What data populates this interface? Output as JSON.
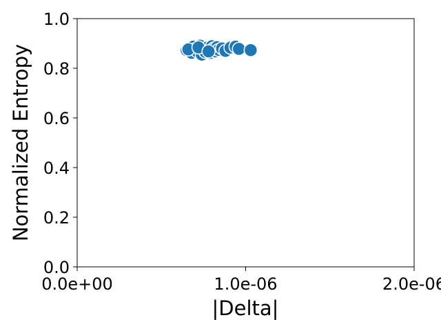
{
  "chart_data": {
    "type": "scatter",
    "title": "",
    "xlabel": "|Delta|",
    "ylabel": "Normalized Entropy",
    "xlim": [
      0,
      2e-06
    ],
    "ylim": [
      0,
      1
    ],
    "x_ticks": [
      0,
      1e-06,
      2e-06
    ],
    "x_tick_labels": [
      "0.0e+00",
      "1.0e-06",
      "2.0e-06"
    ],
    "y_ticks": [
      0,
      0.2,
      0.4,
      0.6,
      0.8,
      1.0
    ],
    "y_tick_labels": [
      "0.0",
      "0.2",
      "0.4",
      "0.6",
      "0.8",
      "1.0"
    ],
    "grid": false,
    "marker_color": "#1f77b4",
    "marker_edge_color": "#ffffff",
    "points": [
      {
        "x": 6.5e-07,
        "y": 0.873
      },
      {
        "x": 6.6e-07,
        "y": 0.88
      },
      {
        "x": 6.8e-07,
        "y": 0.862
      },
      {
        "x": 6.9e-07,
        "y": 0.887
      },
      {
        "x": 7e-07,
        "y": 0.876
      },
      {
        "x": 7.1e-07,
        "y": 0.869
      },
      {
        "x": 7.2e-07,
        "y": 0.884
      },
      {
        "x": 7.3e-07,
        "y": 0.891
      },
      {
        "x": 7.4e-07,
        "y": 0.855
      },
      {
        "x": 7.5e-07,
        "y": 0.878
      },
      {
        "x": 7.6e-07,
        "y": 0.866
      },
      {
        "x": 7.7e-07,
        "y": 0.883
      },
      {
        "x": 7.8e-07,
        "y": 0.872
      },
      {
        "x": 7.9e-07,
        "y": 0.862
      },
      {
        "x": 8e-07,
        "y": 0.889
      },
      {
        "x": 8.1e-07,
        "y": 0.879
      },
      {
        "x": 8.2e-07,
        "y": 0.868
      },
      {
        "x": 8.3e-07,
        "y": 0.885
      },
      {
        "x": 8.4e-07,
        "y": 0.874
      },
      {
        "x": 8.6e-07,
        "y": 0.88
      },
      {
        "x": 8.8e-07,
        "y": 0.87
      },
      {
        "x": 9.1e-07,
        "y": 0.883
      },
      {
        "x": 9.4e-07,
        "y": 0.887
      },
      {
        "x": 9.6e-07,
        "y": 0.878
      },
      {
        "x": 6.6e-07,
        "y": 0.876
      },
      {
        "x": 7.2e-07,
        "y": 0.884
      },
      {
        "x": 7.8e-07,
        "y": 0.868
      },
      {
        "x": 1.03e-06,
        "y": 0.873
      }
    ]
  }
}
